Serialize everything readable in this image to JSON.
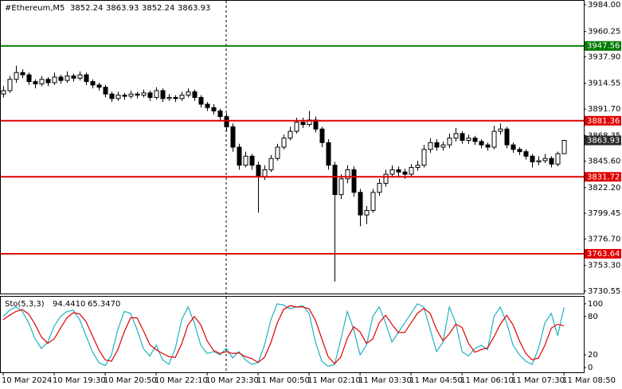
{
  "chart_data": [
    {
      "type": "candlestick",
      "title": "#Ethereum,M5",
      "ohlc": [
        [
          3905,
          3912,
          3902,
          3908
        ],
        [
          3908,
          3921,
          3906,
          3918
        ],
        [
          3918,
          3930,
          3915,
          3924
        ],
        [
          3924,
          3927,
          3919,
          3922
        ],
        [
          3922,
          3924,
          3913,
          3916
        ],
        [
          3916,
          3918,
          3910,
          3914
        ],
        [
          3914,
          3921,
          3912,
          3918
        ],
        [
          3918,
          3920,
          3912,
          3915
        ],
        [
          3915,
          3924,
          3913,
          3920
        ],
        [
          3920,
          3922,
          3914,
          3917
        ],
        [
          3917,
          3925,
          3915,
          3921
        ],
        [
          3921,
          3923,
          3916,
          3919
        ],
        [
          3919,
          3925,
          3917,
          3922
        ],
        [
          3922,
          3924,
          3913,
          3916
        ],
        [
          3916,
          3918,
          3910,
          3913
        ],
        [
          3913,
          3915,
          3908,
          3911
        ],
        [
          3911,
          3913,
          3902,
          3905
        ],
        [
          3905,
          3907,
          3898,
          3901
        ],
        [
          3901,
          3907,
          3899,
          3904
        ],
        [
          3904,
          3906,
          3900,
          3903
        ],
        [
          3903,
          3908,
          3901,
          3905
        ],
        [
          3905,
          3907,
          3901,
          3904
        ],
        [
          3904,
          3909,
          3902,
          3906
        ],
        [
          3906,
          3908,
          3899,
          3902
        ],
        [
          3902,
          3911,
          3900,
          3908
        ],
        [
          3908,
          3910,
          3898,
          3901
        ],
        [
          3901,
          3905,
          3899,
          3902
        ],
        [
          3902,
          3904,
          3898,
          3901
        ],
        [
          3901,
          3907,
          3899,
          3904
        ],
        [
          3904,
          3910,
          3902,
          3907
        ],
        [
          3907,
          3909,
          3899,
          3902
        ],
        [
          3902,
          3904,
          3893,
          3896
        ],
        [
          3896,
          3898,
          3890,
          3893
        ],
        [
          3893,
          3896,
          3887,
          3890
        ],
        [
          3890,
          3892,
          3882,
          3885
        ],
        [
          3885,
          3888,
          3872,
          3876
        ],
        [
          3876,
          3879,
          3854,
          3858
        ],
        [
          3858,
          3861,
          3838,
          3842
        ],
        [
          3842,
          3854,
          3840,
          3850
        ],
        [
          3850,
          3852,
          3838,
          3842
        ],
        [
          3842,
          3845,
          3800,
          3832
        ],
        [
          3832,
          3842,
          3829,
          3838
        ],
        [
          3838,
          3851,
          3836,
          3848
        ],
        [
          3848,
          3861,
          3846,
          3858
        ],
        [
          3858,
          3869,
          3856,
          3866
        ],
        [
          3866,
          3876,
          3864,
          3872
        ],
        [
          3872,
          3884,
          3870,
          3880
        ],
        [
          3880,
          3884,
          3875,
          3878
        ],
        [
          3878,
          3890,
          3876,
          3882
        ],
        [
          3882,
          3885,
          3871,
          3874
        ],
        [
          3874,
          3876,
          3858,
          3862
        ],
        [
          3862,
          3865,
          3838,
          3842
        ],
        [
          3842,
          3845,
          3739,
          3816
        ],
        [
          3816,
          3834,
          3812,
          3830
        ],
        [
          3830,
          3842,
          3826,
          3838
        ],
        [
          3838,
          3841,
          3814,
          3818
        ],
        [
          3818,
          3821,
          3788,
          3798
        ],
        [
          3798,
          3806,
          3790,
          3802
        ],
        [
          3802,
          3821,
          3800,
          3818
        ],
        [
          3818,
          3830,
          3815,
          3826
        ],
        [
          3826,
          3838,
          3823,
          3834
        ],
        [
          3834,
          3842,
          3831,
          3838
        ],
        [
          3838,
          3841,
          3832,
          3836
        ],
        [
          3836,
          3839,
          3830,
          3834
        ],
        [
          3834,
          3843,
          3832,
          3840
        ],
        [
          3840,
          3846,
          3837,
          3842
        ],
        [
          3842,
          3860,
          3840,
          3856
        ],
        [
          3856,
          3866,
          3853,
          3862
        ],
        [
          3862,
          3865,
          3855,
          3858
        ],
        [
          3858,
          3863,
          3855,
          3860
        ],
        [
          3860,
          3870,
          3857,
          3866
        ],
        [
          3866,
          3875,
          3863,
          3870
        ],
        [
          3870,
          3872,
          3861,
          3864
        ],
        [
          3864,
          3869,
          3861,
          3866
        ],
        [
          3866,
          3868,
          3860,
          3863
        ],
        [
          3863,
          3865,
          3857,
          3860
        ],
        [
          3860,
          3862,
          3855,
          3858
        ],
        [
          3858,
          3877,
          3856,
          3872
        ],
        [
          3872,
          3879,
          3869,
          3874
        ],
        [
          3874,
          3876,
          3857,
          3860
        ],
        [
          3860,
          3862,
          3853,
          3856
        ],
        [
          3856,
          3858,
          3851,
          3854
        ],
        [
          3854,
          3856,
          3847,
          3850
        ],
        [
          3850,
          3852,
          3840,
          3845
        ],
        [
          3845,
          3850,
          3842,
          3846
        ],
        [
          3846,
          3852,
          3844,
          3848
        ],
        [
          3848,
          3850,
          3840,
          3843
        ],
        [
          3843,
          3854,
          3841,
          3852.24
        ],
        [
          3852.24,
          3863.93,
          3852.24,
          3863.93
        ]
      ],
      "ohlc_labels": [
        "3852.24",
        "3863.93",
        "3852.24",
        "3863.93"
      ],
      "up_color": "#ffffff",
      "down_color": "#000000",
      "xlim": [
        -0.5,
        91.1
      ],
      "ylim": [
        3728.45,
        3987.5
      ],
      "yticks": [
        {
          "value": 3984,
          "label": "3984.00"
        },
        3960.25,
        {
          "value": 3937.9,
          "label": "3937.90"
        },
        3914.55,
        {
          "value": 3891.7,
          "label": "3891.70"
        },
        3868.35,
        {
          "value": 3845.6,
          "label": "3845.60"
        },
        {
          "value": 3822.2,
          "label": "3822.20"
        },
        3799.45,
        {
          "value": 3776.7,
          "label": "3776.70"
        },
        {
          "value": 3753.3,
          "label": "3753.30"
        },
        3730.55
      ],
      "xticks": [
        {
          "value": 0,
          "label": "10 Mar 2024"
        },
        {
          "value": 8,
          "label": "10 Mar 19:30"
        },
        {
          "value": 16,
          "label": "10 Mar 20:50"
        },
        {
          "value": 24,
          "label": "10 Mar 22:10"
        },
        {
          "value": 32,
          "label": "10 Mar 23:30"
        },
        {
          "value": 40,
          "label": "11 Mar 00:50"
        },
        {
          "value": 48,
          "label": "11 Mar 02:10"
        },
        {
          "value": 56,
          "label": "11 Mar 03:30"
        },
        {
          "value": 64,
          "label": "11 Mar 04:50"
        },
        {
          "value": 72,
          "label": "11 Mar 06:10"
        },
        {
          "value": 80,
          "label": "11 Mar 07:30"
        },
        {
          "value": 88,
          "label": "11 Mar 08:50"
        }
      ],
      "levels": [
        {
          "value": 3947.56,
          "color": "#007a00"
        },
        {
          "value": 3881.36,
          "color": "#e00000"
        },
        {
          "value": 3831.72,
          "color": "#e00000"
        },
        {
          "value": 3763.64,
          "color": "#e00000"
        }
      ],
      "current_color": "#2b2b2b"
    },
    {
      "type": "line",
      "title": "Sto(5,3,3)",
      "series": [
        {
          "color": "#20b2c0",
          "last_label": "94.4410",
          "values": [
            80,
            90,
            95,
            88,
            70,
            45,
            30,
            40,
            65,
            80,
            88,
            90,
            75,
            50,
            25,
            8,
            3,
            20,
            60,
            88,
            85,
            60,
            30,
            18,
            35,
            12,
            5,
            30,
            75,
            95,
            70,
            35,
            22,
            25,
            20,
            30,
            15,
            25,
            12,
            5,
            8,
            35,
            75,
            100,
            98,
            92,
            95,
            97,
            85,
            40,
            10,
            2,
            5,
            45,
            88,
            60,
            20,
            35,
            80,
            95,
            70,
            40,
            55,
            70,
            85,
            100,
            95,
            60,
            25,
            40,
            95,
            70,
            25,
            18,
            30,
            35,
            28,
            80,
            95,
            70,
            35,
            20,
            10,
            5,
            30,
            70,
            85,
            50,
            94.441
          ]
        },
        {
          "color": "#e00000",
          "last_label": "65.3470",
          "values": [
            75,
            82,
            88,
            91,
            84,
            68,
            48,
            38,
            45,
            62,
            78,
            86,
            84,
            72,
            50,
            28,
            12,
            10,
            28,
            56,
            78,
            78,
            58,
            36,
            28,
            22,
            17,
            16,
            37,
            67,
            80,
            67,
            42,
            27,
            22,
            25,
            22,
            23,
            17,
            14,
            8,
            16,
            39,
            70,
            91,
            97,
            95,
            95,
            92,
            74,
            45,
            17,
            6,
            17,
            46,
            64,
            56,
            38,
            45,
            70,
            82,
            68,
            55,
            55,
            70,
            85,
            93,
            85,
            60,
            42,
            53,
            68,
            63,
            38,
            24,
            28,
            31,
            48,
            68,
            82,
            67,
            42,
            22,
            12,
            15,
            35,
            62,
            68,
            65.347
          ]
        }
      ],
      "ylim": [
        -7.4,
        111.1
      ],
      "yticks": [
        100,
        80,
        20,
        0
      ]
    }
  ]
}
